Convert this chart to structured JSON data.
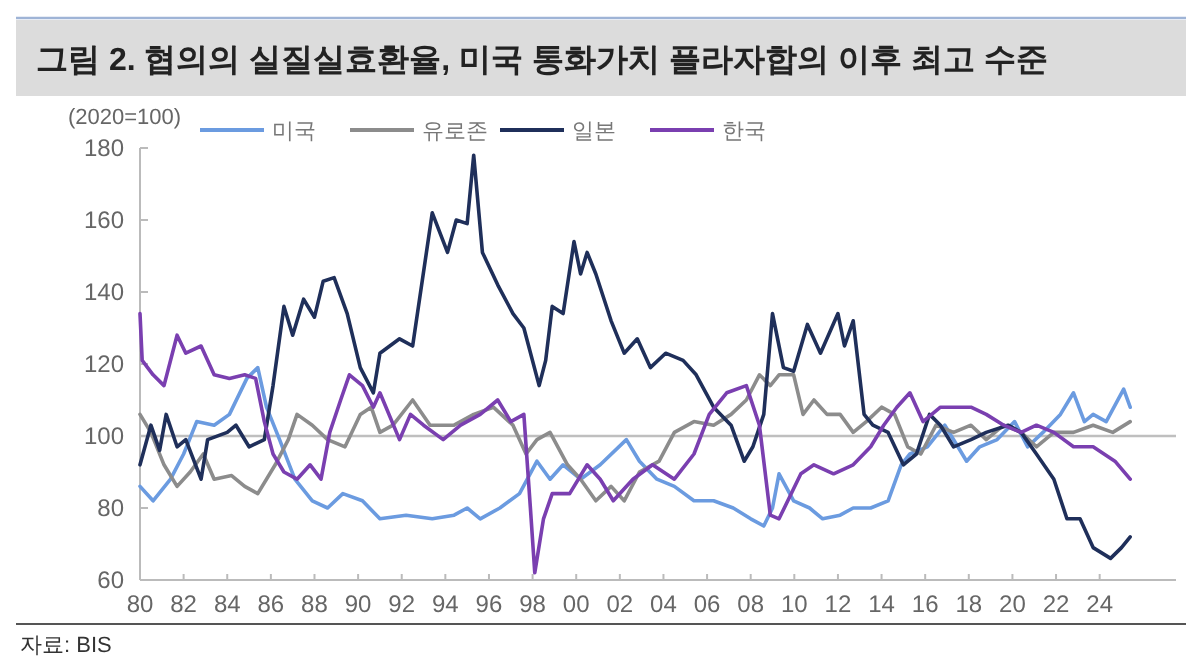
{
  "chart_data": {
    "type": "line",
    "title": "그림 2.  협의의 실질실효환율, 미국 통화가치 플라자합의 이후 최고 수준",
    "ylabel": "(2020=100)",
    "annotations": [
      "자료: BIS"
    ],
    "xlim": [
      1980,
      2027.5
    ],
    "xticks": [
      {
        "value": 1980,
        "label": "80"
      },
      {
        "value": 1982,
        "label": "82"
      },
      {
        "value": 1984,
        "label": "84"
      },
      {
        "value": 1986,
        "label": "86"
      },
      {
        "value": 1988,
        "label": "88"
      },
      {
        "value": 1990,
        "label": "90"
      },
      {
        "value": 1992,
        "label": "92"
      },
      {
        "value": 1994,
        "label": "94"
      },
      {
        "value": 1996,
        "label": "96"
      },
      {
        "value": 1998,
        "label": "98"
      },
      {
        "value": 2000,
        "label": "00"
      },
      {
        "value": 2002,
        "label": "02"
      },
      {
        "value": 2004,
        "label": "04"
      },
      {
        "value": 2006,
        "label": "06"
      },
      {
        "value": 2008,
        "label": "08"
      },
      {
        "value": 2010,
        "label": "10"
      },
      {
        "value": 2012,
        "label": "12"
      },
      {
        "value": 2014,
        "label": "14"
      },
      {
        "value": 2016,
        "label": "16"
      },
      {
        "value": 2018,
        "label": "18"
      },
      {
        "value": 2020,
        "label": "20"
      },
      {
        "value": 2022,
        "label": "22"
      },
      {
        "value": 2024,
        "label": "24"
      }
    ],
    "ylim": [
      60,
      180
    ],
    "yticks": [
      60,
      80,
      100,
      120,
      140,
      160,
      180
    ],
    "grid": false,
    "legend": "top",
    "marker": "none",
    "line_style": "solid",
    "ref_lines": [
      {
        "axis": "y",
        "value": 100,
        "color": "#bfbfbf"
      }
    ],
    "series": [
      {
        "name": "미국",
        "color": "#6b9be0",
        "x": [
          1980.0,
          1980.6,
          1981.4,
          1982.0,
          1982.6,
          1983.4,
          1984.1,
          1984.9,
          1985.4,
          1985.8,
          1986.4,
          1987.1,
          1987.9,
          1988.6,
          1989.3,
          1990.2,
          1991.0,
          1992.2,
          1993.4,
          1994.4,
          1995.0,
          1995.6,
          1996.5,
          1997.4,
          1998.2,
          1998.8,
          1999.4,
          2000.2,
          2001.1,
          2002.3,
          2002.9,
          2003.7,
          2004.5,
          2005.4,
          2006.3,
          2007.2,
          2008.0,
          2008.6,
          2009.0,
          2009.3,
          2009.97,
          2010.7,
          2011.3,
          2012.1,
          2012.7,
          2013.5,
          2014.3,
          2014.9,
          2015.3,
          2016.1,
          2016.9,
          2017.5,
          2017.9,
          2018.5,
          2019.3,
          2020.1,
          2020.7,
          2021.4,
          2022.2,
          2022.8,
          2023.3,
          2023.7,
          2024.3,
          2025.1,
          2025.4
        ],
        "values": [
          86,
          82,
          88,
          95,
          104,
          103,
          106,
          116,
          119,
          108,
          99,
          88,
          82,
          80,
          84,
          82,
          77,
          78,
          77,
          78,
          80,
          77,
          80,
          84,
          93,
          88,
          92,
          88,
          92,
          99,
          93,
          88,
          86,
          82,
          82,
          80,
          77,
          75,
          80,
          89.5,
          82,
          80,
          77,
          78,
          80,
          80,
          82,
          92,
          95,
          97,
          103,
          97,
          93,
          97,
          99,
          104,
          97,
          101,
          106,
          112,
          104,
          106,
          104,
          113,
          108
        ]
      },
      {
        "name": "유로존",
        "color": "#8c8c8c",
        "x": [
          1980.0,
          1980.5,
          1981.1,
          1981.7,
          1982.3,
          1982.9,
          1983.4,
          1984.2,
          1984.8,
          1985.4,
          1986.2,
          1986.8,
          1987.2,
          1987.9,
          1988.6,
          1989.4,
          1990.1,
          1990.6,
          1991.0,
          1991.6,
          1992.5,
          1993.3,
          1994.4,
          1995.3,
          1996.2,
          1997.1,
          1997.7,
          1998.2,
          1998.8,
          1999.6,
          2000.2,
          2000.9,
          2001.6,
          2002.2,
          2002.9,
          2003.8,
          2004.5,
          2005.4,
          2006.3,
          2007.1,
          2007.8,
          2008.4,
          2008.9,
          2009.3,
          2009.97,
          2010.4,
          2010.9,
          2011.5,
          2012.1,
          2012.7,
          2013.3,
          2014.0,
          2014.6,
          2015.2,
          2015.8,
          2016.5,
          2017.3,
          2018.1,
          2018.8,
          2019.6,
          2020.4,
          2021.1,
          2021.9,
          2022.8,
          2023.7,
          2024.6,
          2025.4
        ],
        "values": [
          106,
          101,
          92,
          86,
          90,
          95,
          88,
          89,
          86,
          84,
          92,
          99,
          106,
          103,
          99,
          97,
          106,
          108,
          101,
          103,
          110,
          103,
          103,
          106,
          108,
          103,
          95,
          99,
          101,
          92,
          88,
          82,
          86,
          82,
          90,
          93,
          101,
          104,
          103,
          106,
          110,
          117,
          114,
          117,
          117,
          106,
          110,
          106,
          106,
          101,
          104,
          108,
          106,
          97,
          95,
          103,
          101,
          103,
          99,
          103,
          101,
          97,
          101,
          101,
          103,
          101,
          104
        ]
      },
      {
        "name": "일본",
        "color": "#1f2f5a",
        "x": [
          1980.0,
          1980.5,
          1980.9,
          1981.2,
          1981.7,
          1982.1,
          1982.8,
          1983.1,
          1984.0,
          1984.4,
          1985.0,
          1985.7,
          1986.1,
          1986.6,
          1987.0,
          1987.5,
          1988.0,
          1988.4,
          1988.9,
          1989.5,
          1990.1,
          1990.7,
          1991.0,
          1991.9,
          1992.5,
          1993.4,
          1994.1,
          1994.5,
          1995.0,
          1995.3,
          1995.7,
          1996.4,
          1997.1,
          1997.6,
          1998.3,
          1998.6,
          1998.9,
          1999.4,
          1999.9,
          2000.2,
          2000.5,
          2000.9,
          2001.6,
          2002.2,
          2002.8,
          2003.4,
          2004.1,
          2004.9,
          2005.5,
          2006.3,
          2007.1,
          2007.7,
          2008.1,
          2008.6,
          2009.0,
          2009.5,
          2009.97,
          2010.6,
          2011.2,
          2012.0,
          2012.3,
          2012.7,
          2013.2,
          2013.6,
          2014.3,
          2015.0,
          2015.6,
          2016.2,
          2016.7,
          2017.3,
          2018.1,
          2018.8,
          2019.8,
          2020.4,
          2021.1,
          2021.9,
          2022.5,
          2023.1,
          2023.7,
          2024.5,
          2025.0,
          2025.4
        ],
        "values": [
          92,
          103,
          96,
          106,
          97,
          99,
          88,
          99,
          101,
          103,
          97,
          99,
          114,
          136,
          128,
          138,
          133,
          143,
          144,
          134,
          119,
          112,
          123,
          127,
          125,
          162,
          151,
          160,
          159,
          178,
          151,
          142,
          134,
          130,
          114,
          121,
          136,
          134,
          154,
          145,
          151,
          145,
          132,
          123,
          127,
          119,
          123,
          121,
          117,
          108,
          103,
          93,
          97,
          106,
          134,
          119,
          118,
          131,
          123,
          134,
          125,
          132,
          106,
          103,
          101,
          92,
          95,
          106,
          103,
          97,
          99,
          101,
          103,
          101,
          95,
          88,
          77,
          77,
          69,
          66,
          69,
          72
        ]
      },
      {
        "name": "한국",
        "color": "#7a3fb0",
        "x": [
          1980.0,
          1980.1,
          1980.6,
          1981.1,
          1981.7,
          1982.1,
          1982.8,
          1983.4,
          1984.1,
          1984.8,
          1985.3,
          1985.7,
          1986.1,
          1986.6,
          1987.2,
          1987.8,
          1988.3,
          1988.7,
          1989.2,
          1989.6,
          1990.2,
          1990.7,
          1991.0,
          1991.9,
          1992.4,
          1993.0,
          1993.9,
          1994.7,
          1995.6,
          1996.4,
          1997.0,
          1997.6,
          1997.9,
          1998.1,
          1998.5,
          1998.9,
          1999.7,
          2000.5,
          2001.1,
          2001.7,
          2002.6,
          2003.5,
          2004.5,
          2005.4,
          2006.1,
          2006.9,
          2007.8,
          2008.4,
          2008.9,
          2009.3,
          2010.3,
          2010.9,
          2011.8,
          2012.7,
          2013.5,
          2014.1,
          2014.7,
          2015.3,
          2015.9,
          2016.7,
          2017.3,
          2018.1,
          2018.8,
          2019.6,
          2020.4,
          2021.1,
          2021.9,
          2022.8,
          2023.7,
          2024.7,
          2025.4
        ],
        "values": [
          134,
          121,
          117,
          114,
          128,
          123,
          125,
          117,
          116,
          117,
          116,
          104,
          95,
          90,
          88,
          92,
          88,
          101,
          110,
          117,
          114,
          108,
          112,
          99,
          106,
          103,
          99,
          103,
          106,
          110,
          104,
          106,
          80,
          62,
          77,
          84,
          84,
          92,
          88,
          82,
          88,
          92,
          88,
          95,
          106,
          112,
          114,
          103,
          78,
          77,
          89.5,
          92,
          89.5,
          92,
          97,
          103,
          108,
          112,
          104,
          108,
          108,
          108,
          106,
          103,
          101,
          103,
          101,
          97,
          97,
          93,
          88
        ]
      }
    ]
  }
}
